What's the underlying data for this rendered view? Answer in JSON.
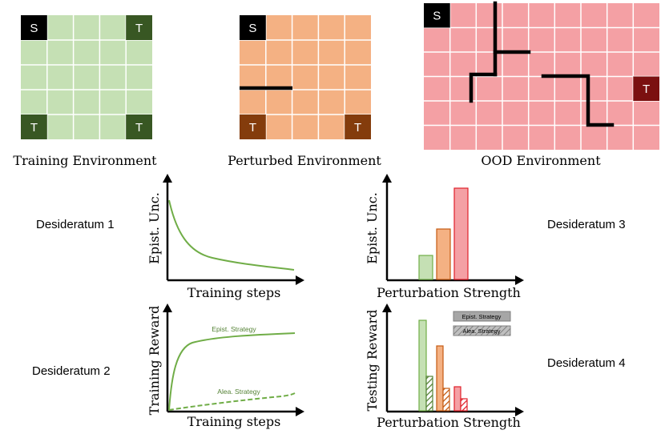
{
  "colors": {
    "green_fill": "#c5e0b4",
    "green_target": "#385723",
    "orange_fill": "#f4b183",
    "orange_target": "#843c0c",
    "red_fill": "#f4a0a4",
    "red_target": "#7b1010",
    "start": "#000000",
    "grid_line": "#ffffff",
    "wall": "#000000",
    "curve_green": "#70ad47",
    "legend_gray": "#a6a6a6"
  },
  "environments": {
    "training": {
      "title": "Training Environment",
      "start_label": "S",
      "target_label": "T"
    },
    "perturbed": {
      "title": "Perturbed Environment",
      "start_label": "S",
      "target_label": "T"
    },
    "ood": {
      "title": "OOD Environment",
      "start_label": "S",
      "target_label": "T"
    }
  },
  "desiderata": {
    "d1": "Desideratum 1",
    "d2": "Desideratum 2",
    "d3": "Desideratum 3",
    "d4": "Desideratum 4"
  },
  "plots": {
    "p1": {
      "ylabel": "Epist. Unc.",
      "xlabel": "Training steps"
    },
    "p2": {
      "ylabel": "Training Reward",
      "xlabel": "Training steps",
      "epist_label": "Epist. Strategy",
      "alea_label": "Alea. Strategy"
    },
    "p3": {
      "ylabel": "Epist. Unc.",
      "xlabel": "Perturbation Strength"
    },
    "p4": {
      "ylabel": "Testing Reward",
      "xlabel": "Perturbation Strength",
      "legend_epist": "Epist. Strategy",
      "legend_alea": "Alea. Strategy"
    }
  }
}
